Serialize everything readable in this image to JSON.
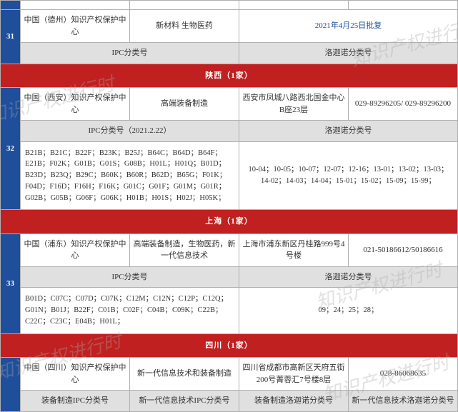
{
  "colors": {
    "header_blue": "#1f4e9b",
    "region_red": "#c02020",
    "sub_gray": "#e0e0e0",
    "link_blue": "#1f4e9b",
    "border": "#b0b0b0",
    "text": "#333333",
    "watermark": "rgba(170,170,170,0.35)"
  },
  "watermark_text": "知识产权进行时",
  "sections": {
    "dezhou": {
      "num": "31",
      "center": "中国（德州）知识产权保护中心",
      "field": "新材料 生物医药",
      "approval": "2021年4月25日批复",
      "ipc_label": "IPC分类号",
      "locarno_label": "洛迦诺分类号"
    },
    "shaanxi": {
      "region": "陕西（1家）",
      "num": "32",
      "center": "中国（西安）知识产权保护中心",
      "field": "高端装备制造",
      "address": "西安市凤城八路西北国金中心B座23层",
      "phone": "029-89296205/ 029-89296200",
      "ipc_label": "IPC分类号（2021.2.22）",
      "locarno_label": "洛迦诺分类号",
      "ipc_codes": "B21B；B21C；B22F；B23K；B25J；B64C；B64D；B64F；E21B；F02K；G01B；G01S；G08B；H01L；H01Q；B01D；B23D；B23Q；B29C；B60K；B60R；B62D；B65G；F01K；F04D；F16D；F16H；F16K；G01C；G01F；G01M；G01R；G02B；G05B；G06F；G06K；H01B；H01S；H02J；H05K；",
      "locarno_codes": "10-04；10-05；10-07；12-07；12-16；13-01；13-02；13-03；14-02；14-03；14-04；15-01；15-02；15-09；15-99；"
    },
    "shanghai": {
      "region": "上海（1家）",
      "num": "33",
      "center": "中国（浦东）知识产权保护中心",
      "field": "高端装备制造，生物医药，新一代信息技术",
      "address": "上海市浦东新区丹桂路999号4号楼",
      "phone": "021-50186612/50186616",
      "ipc_label": "IPC分类号",
      "locarno_label": "洛迦诺分类号",
      "ipc_codes": "B01D；C07C；C07D；C07K；C12M；C12N；C12P；C12Q；G01N；B01J；B22F；C01B；C02F；C04B；C09K；C22B；C22C；C23C；E04B；H01L；",
      "locarno_codes": "09；24；25；28；"
    },
    "sichuan": {
      "region": "四川（1家）",
      "center": "中国（四川）知识产权保护中心",
      "field": "新一代信息技术和装备制造",
      "address": "四川省成都市高新区天府五街200号菁蓉汇7号楼8层",
      "phone": "028-86068635",
      "ipc_label1": "装备制造IPC分类号",
      "ipc_label2": "新一代信息技术IPC分类号",
      "locarno_label": "装备制造洛迦诺分类号",
      "locarno_label2": "新一代信息技术洛迦诺分类号"
    }
  }
}
